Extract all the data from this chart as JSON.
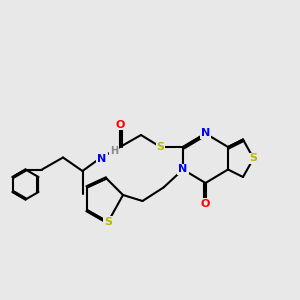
{
  "background_color": "#e8e8e8",
  "bond_color": "#000000",
  "atom_colors": {
    "N": "#0000ff",
    "O": "#ff0000",
    "S": "#b8b800",
    "H": "#888888",
    "C": "#000000"
  },
  "lw": 1.5
}
